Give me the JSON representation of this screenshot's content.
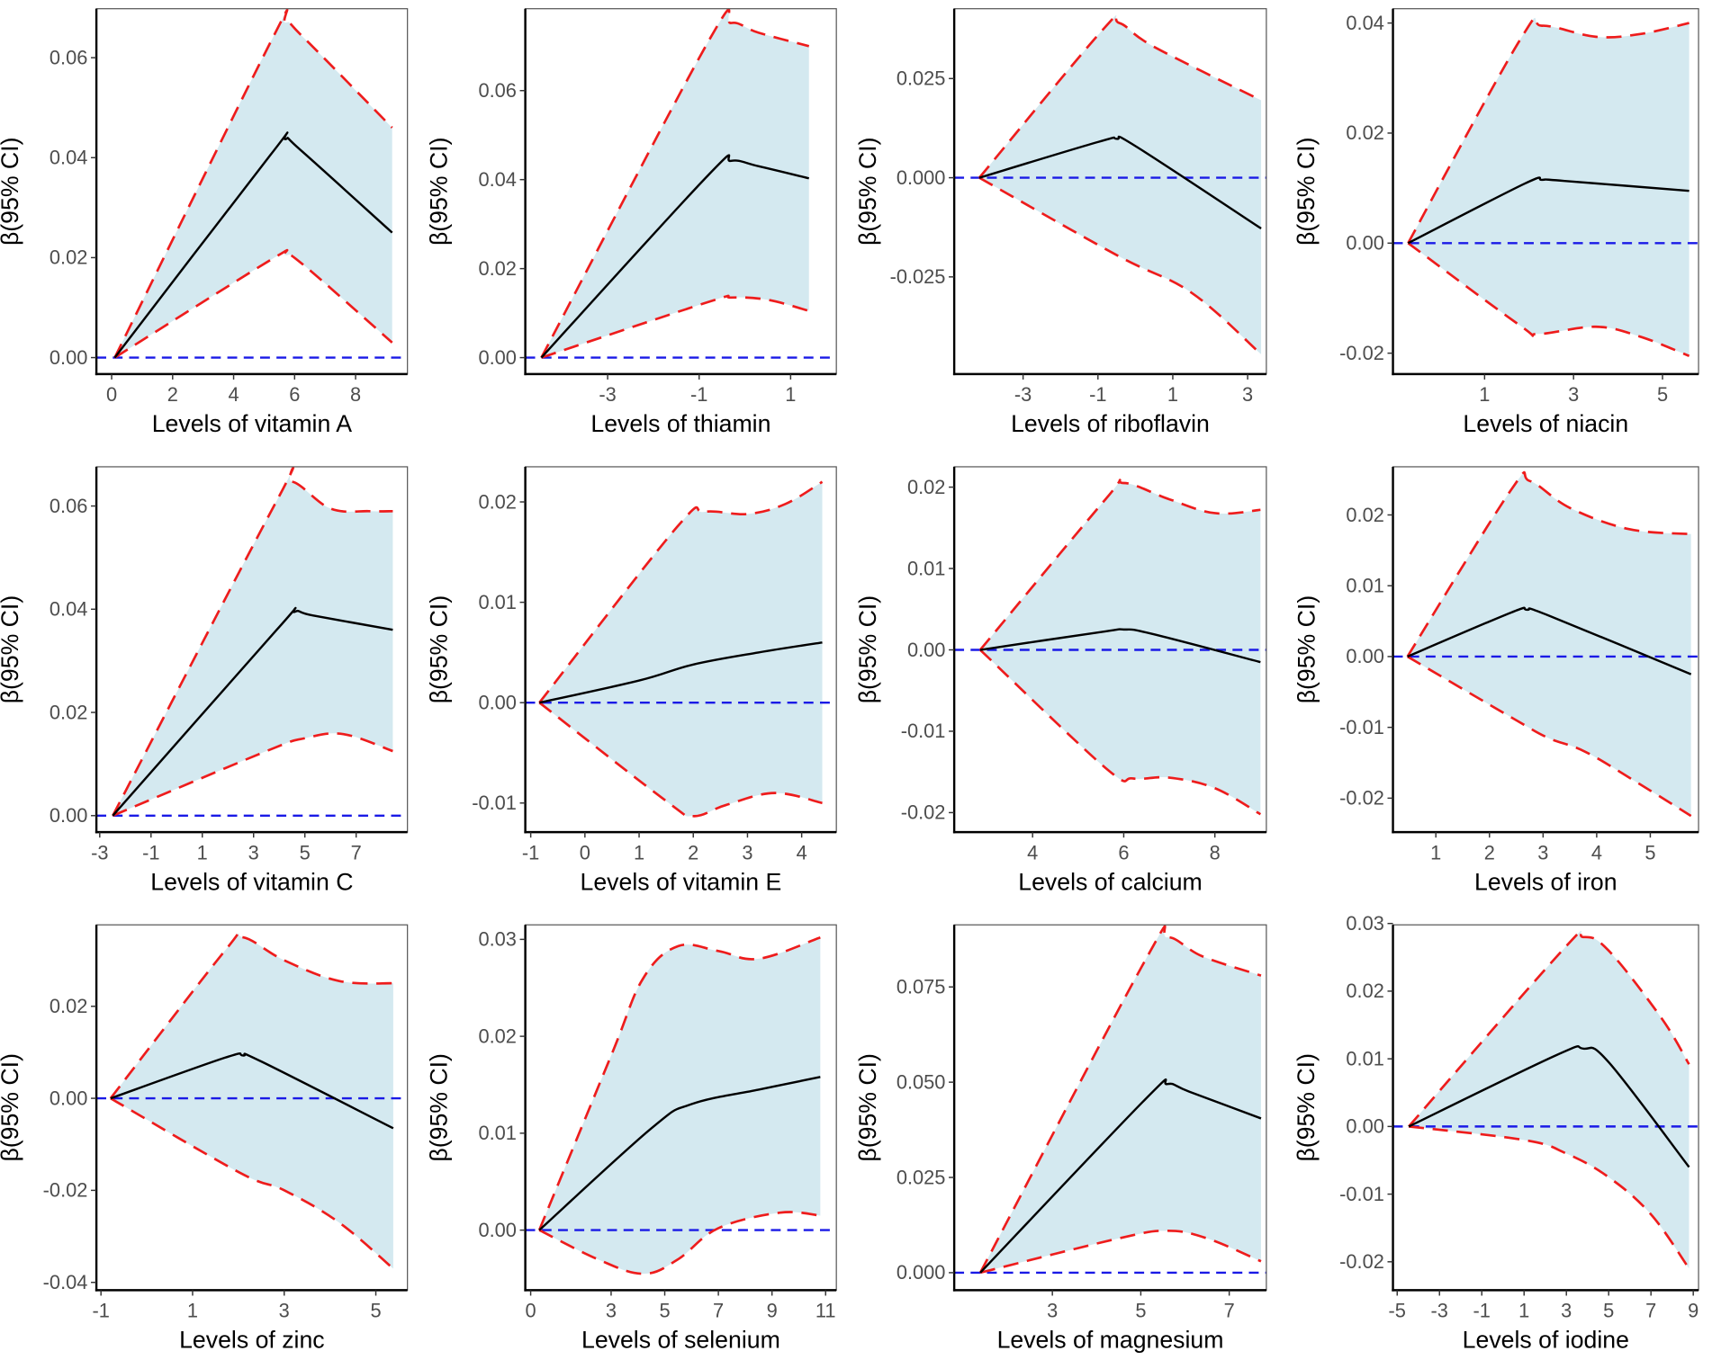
{
  "colors": {
    "ci_fill": "#d4e9f0",
    "ci_line": "#ee1c1c",
    "estimate": "#000000",
    "reference": "#1a1ae6"
  },
  "chart_data": [
    {
      "type": "line",
      "title": "",
      "xlabel": "Levels of vitamin A",
      "ylabel": "β(95% CI)",
      "xlim": [
        -0.5,
        9.7
      ],
      "ylim": [
        -0.0033,
        0.0698
      ],
      "xticks": [
        0,
        2,
        4,
        6,
        8
      ],
      "xtick_labels": [
        "0",
        "2",
        "4",
        "6",
        "8"
      ],
      "yticks": [
        0,
        0.02,
        0.04,
        0.06
      ],
      "ytick_labels": [
        "0.00",
        "0.02",
        "0.04",
        "0.06"
      ],
      "estimate": [
        [
          0.1,
          0
        ],
        [
          5.2,
          0.0405
        ],
        [
          5.7,
          0.0437
        ],
        [
          6.2,
          0.0415
        ],
        [
          9.2,
          0.025
        ]
      ],
      "upper": [
        [
          0.1,
          0
        ],
        [
          5.2,
          0.063
        ],
        [
          5.7,
          0.067
        ],
        [
          6.3,
          0.064
        ],
        [
          9.2,
          0.046
        ]
      ],
      "lower": [
        [
          0.1,
          0
        ],
        [
          5.2,
          0.0195
        ],
        [
          5.7,
          0.0205
        ],
        [
          6.3,
          0.0185
        ],
        [
          9.2,
          0.003
        ]
      ]
    },
    {
      "type": "line",
      "title": "",
      "xlabel": "Levels of thiamin",
      "ylabel": "β(95% CI)",
      "xlim": [
        -4.8,
        2.0
      ],
      "ylim": [
        -0.0037,
        0.0784
      ],
      "xticks": [
        -3,
        -1,
        1
      ],
      "xtick_labels": [
        "-3",
        "-1",
        "1"
      ],
      "yticks": [
        0,
        0.02,
        0.04,
        0.06
      ],
      "ytick_labels": [
        "0.00",
        "0.02",
        "0.04",
        "0.06"
      ],
      "estimate": [
        [
          -4.45,
          0
        ],
        [
          -0.8,
          0.041
        ],
        [
          -0.3,
          0.0442
        ],
        [
          0.3,
          0.043
        ],
        [
          1.4,
          0.0403
        ]
      ],
      "upper": [
        [
          -4.45,
          0
        ],
        [
          -0.8,
          0.071
        ],
        [
          -0.3,
          0.0752
        ],
        [
          0.3,
          0.073
        ],
        [
          1.4,
          0.07
        ]
      ],
      "lower": [
        [
          -4.45,
          0
        ],
        [
          -0.8,
          0.0125
        ],
        [
          -0.3,
          0.0135
        ],
        [
          0.5,
          0.013
        ],
        [
          1.4,
          0.0105
        ]
      ]
    },
    {
      "type": "line",
      "title": "",
      "xlabel": "Levels of riboflavin",
      "ylabel": "β(95% CI)",
      "xlim": [
        -4.84,
        3.5
      ],
      "ylim": [
        -0.0495,
        0.0426
      ],
      "xticks": [
        -3,
        -1,
        1,
        3
      ],
      "xtick_labels": [
        "-3",
        "-1",
        "1",
        "3"
      ],
      "yticks": [
        -0.025,
        0,
        0.025
      ],
      "ytick_labels": [
        "-0.025",
        "0.000",
        "0.025"
      ],
      "estimate": [
        [
          -4.17,
          0
        ],
        [
          -1.0,
          0.009
        ],
        [
          -0.5,
          0.0098
        ],
        [
          0.0,
          0.008
        ],
        [
          3.36,
          -0.0128
        ]
      ],
      "upper": [
        [
          -4.17,
          0
        ],
        [
          -0.9,
          0.037
        ],
        [
          -0.43,
          0.039
        ],
        [
          0.5,
          0.033
        ],
        [
          3.36,
          0.0195
        ]
      ],
      "lower": [
        [
          -4.17,
          0
        ],
        [
          -0.5,
          -0.0195
        ],
        [
          1.5,
          -0.029
        ],
        [
          3.36,
          -0.0445
        ]
      ]
    },
    {
      "type": "line",
      "title": "",
      "xlabel": "Levels of niacin",
      "ylabel": "β(95% CI)",
      "xlim": [
        -1.06,
        5.81
      ],
      "ylim": [
        -0.0238,
        0.0426
      ],
      "xticks": [
        1,
        3,
        5
      ],
      "xtick_labels": [
        "1",
        "3",
        "5"
      ],
      "yticks": [
        -0.02,
        0,
        0.02,
        0.04
      ],
      "ytick_labels": [
        "-0.02",
        "0.00",
        "0.02",
        "0.04"
      ],
      "estimate": [
        [
          -0.72,
          0
        ],
        [
          1.9,
          0.0108
        ],
        [
          2.3,
          0.0115
        ],
        [
          2.8,
          0.0113
        ],
        [
          5.6,
          0.0095
        ]
      ],
      "upper": [
        [
          -0.72,
          0
        ],
        [
          1.8,
          0.037
        ],
        [
          2.3,
          0.0395
        ],
        [
          3.5,
          0.0375
        ],
        [
          4.5,
          0.038
        ],
        [
          5.6,
          0.04
        ]
      ],
      "lower": [
        [
          -0.72,
          0
        ],
        [
          1.8,
          -0.015
        ],
        [
          2.2,
          -0.0165
        ],
        [
          3.5,
          -0.0152
        ],
        [
          4.5,
          -0.017
        ],
        [
          5.6,
          -0.0205
        ]
      ]
    },
    {
      "type": "line",
      "title": "",
      "xlabel": "Levels of vitamin C",
      "ylabel": "β(95% CI)",
      "xlim": [
        -3.13,
        9.0
      ],
      "ylim": [
        -0.0032,
        0.0676
      ],
      "xticks": [
        -3,
        -1,
        1,
        3,
        5,
        7
      ],
      "xtick_labels": [
        "-3",
        "-1",
        "1",
        "3",
        "5",
        "7"
      ],
      "yticks": [
        0,
        0.02,
        0.04,
        0.06
      ],
      "ytick_labels": [
        "0.00",
        "0.02",
        "0.04",
        "0.06"
      ],
      "estimate": [
        [
          -2.49,
          0
        ],
        [
          3.9,
          0.036
        ],
        [
          4.6,
          0.0395
        ],
        [
          5.3,
          0.0388
        ],
        [
          8.43,
          0.036
        ]
      ],
      "upper": [
        [
          -2.49,
          0
        ],
        [
          3.9,
          0.061
        ],
        [
          4.5,
          0.0647
        ],
        [
          6.0,
          0.0595
        ],
        [
          7.5,
          0.059
        ],
        [
          8.43,
          0.059
        ]
      ],
      "lower": [
        [
          -2.49,
          0
        ],
        [
          3.5,
          0.0125
        ],
        [
          5.0,
          0.015
        ],
        [
          6.5,
          0.0158
        ],
        [
          8.43,
          0.0125
        ]
      ]
    },
    {
      "type": "line",
      "title": "",
      "xlabel": "Levels of vitamin E",
      "ylabel": "β(95% CI)",
      "xlim": [
        -1.1,
        4.64
      ],
      "ylim": [
        -0.0129,
        0.0235
      ],
      "xticks": [
        -1,
        0,
        1,
        2,
        3,
        4
      ],
      "xtick_labels": [
        "-1",
        "0",
        "1",
        "2",
        "3",
        "4"
      ],
      "yticks": [
        -0.01,
        0,
        0.01,
        0.02
      ],
      "ytick_labels": [
        "-0.01",
        "0.00",
        "0.01",
        "0.02"
      ],
      "estimate": [
        [
          -0.84,
          0
        ],
        [
          1.0,
          0.0022
        ],
        [
          2.0,
          0.0038
        ],
        [
          3.2,
          0.005
        ],
        [
          4.38,
          0.006
        ]
      ],
      "upper": [
        [
          -0.84,
          0
        ],
        [
          1.7,
          0.0175
        ],
        [
          2.2,
          0.019
        ],
        [
          3.0,
          0.0188
        ],
        [
          3.7,
          0.0198
        ],
        [
          4.38,
          0.022
        ]
      ],
      "lower": [
        [
          -0.84,
          0
        ],
        [
          1.5,
          -0.0098
        ],
        [
          2.0,
          -0.0113
        ],
        [
          2.6,
          -0.0102
        ],
        [
          3.5,
          -0.009
        ],
        [
          4.38,
          -0.01
        ]
      ]
    },
    {
      "type": "line",
      "title": "",
      "xlabel": "Levels of calcium",
      "ylabel": "β(95% CI)",
      "xlim": [
        2.28,
        9.13
      ],
      "ylim": [
        -0.0224,
        0.0225
      ],
      "xticks": [
        4,
        6,
        8
      ],
      "xtick_labels": [
        "4",
        "6",
        "8"
      ],
      "yticks": [
        -0.02,
        -0.01,
        0,
        0.01,
        0.02
      ],
      "ytick_labels": [
        "-0.02",
        "-0.01",
        "0.00",
        "0.01",
        "0.02"
      ],
      "estimate": [
        [
          2.85,
          0
        ],
        [
          5.5,
          0.0022
        ],
        [
          6.0,
          0.0025
        ],
        [
          6.6,
          0.002
        ],
        [
          9.0,
          -0.0015
        ]
      ],
      "upper": [
        [
          2.85,
          0
        ],
        [
          5.6,
          0.0185
        ],
        [
          6.0,
          0.0205
        ],
        [
          7.0,
          0.0185
        ],
        [
          8.0,
          0.0168
        ],
        [
          9.0,
          0.0172
        ]
      ],
      "lower": [
        [
          2.85,
          0
        ],
        [
          5.6,
          -0.0145
        ],
        [
          6.2,
          -0.0158
        ],
        [
          7.0,
          -0.0157
        ],
        [
          8.0,
          -0.017
        ],
        [
          9.0,
          -0.0202
        ]
      ]
    },
    {
      "type": "line",
      "title": "",
      "xlabel": "Levels of iron",
      "ylabel": "β(95% CI)",
      "xlim": [
        0.2,
        5.9
      ],
      "ylim": [
        -0.0248,
        0.0268
      ],
      "xticks": [
        1,
        2,
        3,
        4,
        5
      ],
      "xtick_labels": [
        "1",
        "2",
        "3",
        "4",
        "5"
      ],
      "yticks": [
        -0.02,
        -0.01,
        0,
        0.01,
        0.02
      ],
      "ytick_labels": [
        "-0.02",
        "-0.01",
        "0.00",
        "0.01",
        "0.02"
      ],
      "estimate": [
        [
          0.47,
          0
        ],
        [
          2.4,
          0.0062
        ],
        [
          2.7,
          0.0066
        ],
        [
          3.1,
          0.0058
        ],
        [
          5.76,
          -0.0025
        ]
      ],
      "upper": [
        [
          0.47,
          0
        ],
        [
          2.4,
          0.0235
        ],
        [
          2.75,
          0.0248
        ],
        [
          3.5,
          0.021
        ],
        [
          4.6,
          0.018
        ],
        [
          5.76,
          0.0173
        ]
      ],
      "lower": [
        [
          0.47,
          0
        ],
        [
          2.5,
          -0.009
        ],
        [
          3.1,
          -0.0115
        ],
        [
          3.8,
          -0.0135
        ],
        [
          4.8,
          -0.018
        ],
        [
          5.76,
          -0.0225
        ]
      ]
    },
    {
      "type": "line",
      "title": "",
      "xlabel": "Levels of zinc",
      "ylabel": "β(95% CI)",
      "xlim": [
        -1.1,
        5.69
      ],
      "ylim": [
        -0.0417,
        0.0377
      ],
      "xticks": [
        -1,
        1,
        3,
        5
      ],
      "xtick_labels": [
        "-1",
        "1",
        "3",
        "5"
      ],
      "yticks": [
        -0.04,
        -0.02,
        0,
        0.02
      ],
      "ytick_labels": [
        "-0.04",
        "-0.02",
        "0.00",
        "0.02"
      ],
      "estimate": [
        [
          -0.79,
          0
        ],
        [
          1.7,
          0.0088
        ],
        [
          2.1,
          0.0093
        ],
        [
          2.5,
          0.008
        ],
        [
          5.38,
          -0.0065
        ]
      ],
      "upper": [
        [
          -0.79,
          0
        ],
        [
          1.7,
          0.032
        ],
        [
          2.1,
          0.035
        ],
        [
          3.0,
          0.03
        ],
        [
          4.2,
          0.0255
        ],
        [
          5.38,
          0.025
        ]
      ],
      "lower": [
        [
          -0.79,
          0
        ],
        [
          2.0,
          -0.016
        ],
        [
          3.0,
          -0.02
        ],
        [
          4.2,
          -0.027
        ],
        [
          5.38,
          -0.037
        ]
      ]
    },
    {
      "type": "line",
      "title": "",
      "xlabel": "Levels of selenium",
      "ylabel": "β(95% CI)",
      "xlim": [
        -0.2,
        11.4
      ],
      "ylim": [
        -0.0062,
        0.0315
      ],
      "xticks": [
        0,
        3,
        5,
        7,
        9,
        11
      ],
      "xtick_labels": [
        "0",
        "3",
        "5",
        "7",
        "9",
        "11"
      ],
      "yticks": [
        0,
        0.01,
        0.02,
        0.03
      ],
      "ytick_labels": [
        "0.00",
        "0.01",
        "0.02",
        "0.03"
      ],
      "estimate": [
        [
          0.32,
          0
        ],
        [
          4.5,
          0.0105
        ],
        [
          6.0,
          0.013
        ],
        [
          8.5,
          0.0145
        ],
        [
          10.8,
          0.0158
        ]
      ],
      "upper": [
        [
          0.32,
          0
        ],
        [
          3.0,
          0.018
        ],
        [
          4.2,
          0.026
        ],
        [
          5.5,
          0.0293
        ],
        [
          7.0,
          0.0288
        ],
        [
          8.5,
          0.028
        ],
        [
          10.8,
          0.0302
        ]
      ],
      "lower": [
        [
          0.32,
          0
        ],
        [
          2.5,
          -0.003
        ],
        [
          4.2,
          -0.0045
        ],
        [
          5.5,
          -0.003
        ],
        [
          7.0,
          0.0002
        ],
        [
          9.3,
          0.0018
        ],
        [
          10.8,
          0.0015
        ]
      ]
    },
    {
      "type": "line",
      "title": "",
      "xlabel": "Levels of magnesium",
      "ylabel": "β(95% CI)",
      "xlim": [
        0.78,
        7.84
      ],
      "ylim": [
        -0.0046,
        0.0913
      ],
      "xticks": [
        3,
        5,
        7
      ],
      "xtick_labels": [
        "3",
        "5",
        "7"
      ],
      "yticks": [
        0,
        0.025,
        0.05,
        0.075
      ],
      "ytick_labels": [
        "0.000",
        "0.025",
        "0.050",
        "0.075"
      ],
      "estimate": [
        [
          1.37,
          0
        ],
        [
          5.1,
          0.0455
        ],
        [
          5.6,
          0.0495
        ],
        [
          6.1,
          0.0475
        ],
        [
          7.72,
          0.0405
        ]
      ],
      "upper": [
        [
          1.37,
          0
        ],
        [
          5.1,
          0.082
        ],
        [
          5.6,
          0.088
        ],
        [
          6.4,
          0.083
        ],
        [
          7.72,
          0.078
        ]
      ],
      "lower": [
        [
          1.37,
          0
        ],
        [
          4.5,
          0.009
        ],
        [
          5.6,
          0.011
        ],
        [
          6.5,
          0.009
        ],
        [
          7.72,
          0.003
        ]
      ]
    },
    {
      "type": "line",
      "title": "",
      "xlabel": "Levels of iodine",
      "ylabel": "β(95% CI)",
      "xlim": [
        -5.2,
        9.25
      ],
      "ylim": [
        -0.0242,
        0.0298
      ],
      "xticks": [
        -5,
        -3,
        -1,
        1,
        3,
        5,
        7,
        9
      ],
      "xtick_labels": [
        "-5",
        "-3",
        "-1",
        "1",
        "3",
        "5",
        "7",
        "9"
      ],
      "yticks": [
        -0.02,
        -0.01,
        0,
        0.01,
        0.02,
        0.03
      ],
      "ytick_labels": [
        "-0.02",
        "-0.01",
        "0.00",
        "0.01",
        "0.02",
        "0.03"
      ],
      "estimate": [
        [
          -4.45,
          0
        ],
        [
          2.5,
          0.0105
        ],
        [
          3.8,
          0.0115
        ],
        [
          5.0,
          0.0095
        ],
        [
          8.8,
          -0.006
        ]
      ],
      "upper": [
        [
          -4.45,
          0
        ],
        [
          2.8,
          0.026
        ],
        [
          3.8,
          0.028
        ],
        [
          5.0,
          0.026
        ],
        [
          7.5,
          0.016
        ],
        [
          8.8,
          0.0092
        ]
      ],
      "lower": [
        [
          -4.45,
          0
        ],
        [
          1.0,
          -0.002
        ],
        [
          3.0,
          -0.004
        ],
        [
          5.0,
          -0.0075
        ],
        [
          7.0,
          -0.013
        ],
        [
          8.8,
          -0.021
        ]
      ]
    }
  ]
}
